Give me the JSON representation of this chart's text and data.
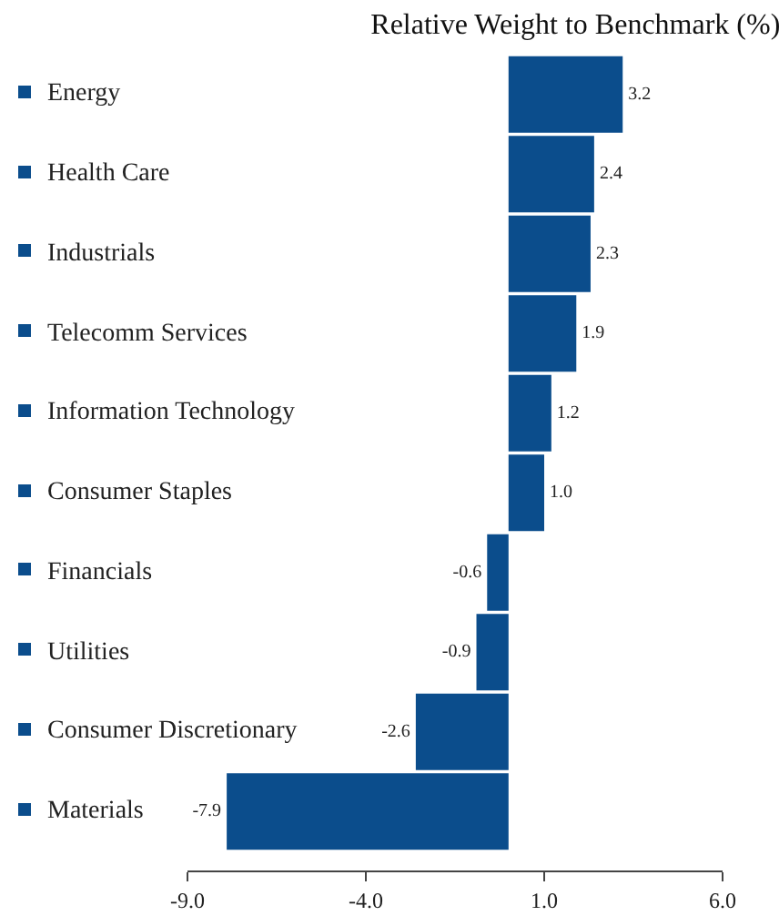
{
  "chart_data": {
    "type": "bar",
    "orientation": "horizontal",
    "title": "Relative Weight to Benchmark (%)",
    "categories": [
      "Energy",
      "Health Care",
      "Industrials",
      "Telecomm Services",
      "Information Technology",
      "Consumer Staples",
      "Financials",
      "Utilities",
      "Consumer Discretionary",
      "Materials"
    ],
    "values": [
      3.2,
      2.4,
      2.3,
      1.9,
      1.2,
      1.0,
      -0.6,
      -0.9,
      -2.6,
      -7.9
    ],
    "value_labels": [
      "3.2",
      "2.4",
      "2.3",
      "1.9",
      "1.2",
      "1.0",
      "-0.6",
      "-0.9",
      "-2.6",
      "-7.9"
    ],
    "color": "#0b4d8c",
    "xlim": [
      -9,
      6
    ],
    "xticks": [
      {
        "value": -9,
        "label": "-9.0"
      },
      {
        "value": -4,
        "label": "-4.0"
      },
      {
        "value": 1,
        "label": "1.0"
      },
      {
        "value": 6,
        "label": "6.0"
      }
    ]
  }
}
